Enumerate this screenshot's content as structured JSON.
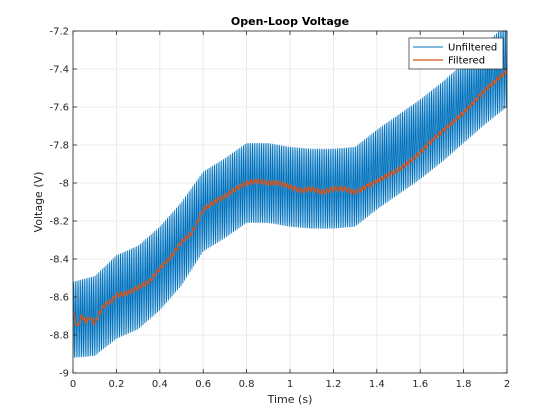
{
  "chart_data": {
    "type": "line",
    "title": "Open-Loop Voltage",
    "xlabel": "Time (s)",
    "ylabel": "Voltage (V)",
    "xlim": [
      0,
      2
    ],
    "ylim": [
      -9,
      -7.2
    ],
    "x_ticks": [
      0,
      0.2,
      0.4,
      0.6,
      0.8,
      1,
      1.2,
      1.4,
      1.6,
      1.8,
      2
    ],
    "x_tick_labels": [
      "0",
      "0.2",
      "0.4",
      "0.6",
      "0.8",
      "1",
      "1.2",
      "1.4",
      "1.6",
      "1.8",
      "2"
    ],
    "y_ticks": [
      -9,
      -8.8,
      -8.6,
      -8.4,
      -8.2,
      -8,
      -7.8,
      -7.6,
      -7.4,
      -7.2
    ],
    "y_tick_labels": [
      "-9",
      "-8.8",
      "-8.6",
      "-8.4",
      "-8.2",
      "-8",
      "-7.8",
      "-7.6",
      "-7.4",
      "-7.2"
    ],
    "grid": true,
    "legend_position": "top-right",
    "series": [
      {
        "name": "Unfiltered",
        "color": "#0072bd",
        "style": "oscillating about trend, approx 120 Hz",
        "x": [
          0,
          0.1,
          0.2,
          0.3,
          0.4,
          0.5,
          0.6,
          0.7,
          0.8,
          0.9,
          1.0,
          1.1,
          1.2,
          1.3,
          1.4,
          1.5,
          1.6,
          1.7,
          1.8,
          1.9,
          2.0
        ],
        "center": [
          -8.72,
          -8.7,
          -8.6,
          -8.55,
          -8.45,
          -8.32,
          -8.15,
          -8.08,
          -8.0,
          -8.0,
          -8.02,
          -8.03,
          -8.03,
          -8.02,
          -7.93,
          -7.85,
          -7.77,
          -7.68,
          -7.58,
          -7.48,
          -7.38
        ],
        "amplitude": [
          0.2,
          0.21,
          0.22,
          0.22,
          0.22,
          0.22,
          0.21,
          0.21,
          0.21,
          0.21,
          0.21,
          0.21,
          0.21,
          0.21,
          0.21,
          0.21,
          0.21,
          0.21,
          0.21,
          0.21,
          0.22
        ]
      },
      {
        "name": "Filtered",
        "color": "#d95319",
        "x": [
          0,
          0.02,
          0.04,
          0.06,
          0.08,
          0.1,
          0.12,
          0.14,
          0.16,
          0.18,
          0.2,
          0.25,
          0.3,
          0.35,
          0.4,
          0.45,
          0.5,
          0.55,
          0.6,
          0.65,
          0.7,
          0.75,
          0.8,
          0.85,
          0.9,
          0.95,
          1.0,
          1.05,
          1.1,
          1.15,
          1.2,
          1.25,
          1.3,
          1.35,
          1.4,
          1.45,
          1.5,
          1.55,
          1.6,
          1.65,
          1.7,
          1.75,
          1.8,
          1.85,
          1.9,
          1.95,
          2.0
        ],
        "y": [
          -8.68,
          -8.76,
          -8.7,
          -8.73,
          -8.71,
          -8.74,
          -8.69,
          -8.65,
          -8.63,
          -8.62,
          -8.59,
          -8.58,
          -8.55,
          -8.52,
          -8.45,
          -8.39,
          -8.31,
          -8.26,
          -8.14,
          -8.1,
          -8.07,
          -8.03,
          -8.0,
          -7.99,
          -8.0,
          -8.0,
          -8.02,
          -8.04,
          -8.03,
          -8.05,
          -8.03,
          -8.03,
          -8.05,
          -8.02,
          -7.99,
          -7.96,
          -7.93,
          -7.89,
          -7.84,
          -7.78,
          -7.73,
          -7.68,
          -7.63,
          -7.57,
          -7.51,
          -7.46,
          -7.41
        ]
      }
    ]
  }
}
